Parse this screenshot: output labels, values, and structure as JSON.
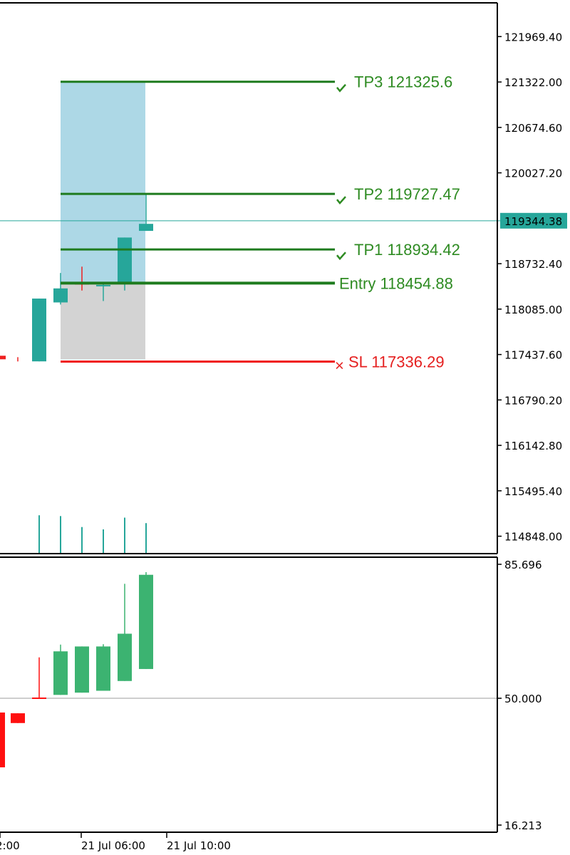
{
  "colors": {
    "up": "#26A69A",
    "down": "#EF2020",
    "tp": "#1E7B1E",
    "tp_text": "#2E8B22",
    "sl": "#F01818",
    "sl_text": "#E52020",
    "current_line": "#26A69A",
    "profit_zone": "#ADD8E6",
    "loss_zone": "#D3D3D3",
    "ind_up": "#3CB371",
    "ind_down": "#FF1010",
    "mid_line": "#BDBDBD"
  },
  "icons": {
    "tp_marker": "check-icon",
    "sl_marker": "x-icon"
  },
  "chart_data": [
    {
      "type": "candlestick",
      "title": "",
      "price_axis": {
        "ylim": [
          114600,
          122450
        ],
        "tick_labels": [
          "121969.40",
          "121322.00",
          "120674.60",
          "120027.20",
          "118732.40",
          "118085.00",
          "117437.60",
          "116790.20",
          "116142.80",
          "115495.40",
          "114848.00"
        ]
      },
      "current_price": {
        "value": 119344.38,
        "label": "119344.38"
      },
      "levels": [
        {
          "name": "TP3",
          "label": "TP3 121325.6",
          "value": 121325.6,
          "marker": "check"
        },
        {
          "name": "TP2",
          "label": "TP2 119727.47",
          "value": 119727.47,
          "marker": "check"
        },
        {
          "name": "TP1",
          "label": "TP1 118934.42",
          "value": 118934.42,
          "marker": "check"
        },
        {
          "name": "Entry",
          "label": "Entry 118454.88",
          "value": 118454.88,
          "marker": ""
        },
        {
          "name": "SL",
          "label": "SL 117336.29",
          "value": 117336.29,
          "marker": "x"
        }
      ],
      "candles": [
        {
          "t": 0,
          "open": 117339,
          "close": 117400,
          "high": 117400,
          "low": 117339,
          "dir": "down"
        },
        {
          "t": 1,
          "open": 117340,
          "close": 118235,
          "high": 118235,
          "low": 117340,
          "dir": "up"
        },
        {
          "t": 2,
          "open": 118180,
          "close": 118380,
          "high": 118600,
          "low": 118150,
          "dir": "up"
        },
        {
          "t": 3,
          "open": 118455,
          "close": 118455,
          "high": 118690,
          "low": 118350,
          "dir": "down"
        },
        {
          "t": 4,
          "open": 118420,
          "close": 118430,
          "high": 118470,
          "low": 118200,
          "dir": "up"
        },
        {
          "t": 5,
          "open": 118450,
          "close": 119105,
          "high": 119105,
          "low": 118350,
          "dir": "up"
        },
        {
          "t": 6,
          "open": 119200,
          "close": 119300,
          "high": 119720,
          "low": 119200,
          "dir": "up"
        }
      ],
      "volume": [
        0,
        0,
        0.48,
        0.47,
        0.33,
        0.3,
        0.45,
        0.38
      ]
    },
    {
      "type": "candlestick",
      "title": "",
      "ylim": [
        16.213,
        85.696
      ],
      "tick_labels": [
        "85.696",
        "50.000",
        "16.213"
      ],
      "mid_level": 50.0,
      "candles": [
        {
          "t": -1,
          "open": 46.2,
          "close": 31.6,
          "high": 46.2,
          "low": 31.6,
          "dir": "down"
        },
        {
          "t": 0,
          "open": 46.0,
          "close": 43.4,
          "high": 46.0,
          "low": 43.4,
          "dir": "down"
        },
        {
          "t": 1,
          "open": 50.2,
          "close": 50.2,
          "high": 60.9,
          "low": 50.2,
          "dir": "down"
        },
        {
          "t": 2,
          "open": 50.9,
          "close": 62.5,
          "high": 64.3,
          "low": 50.9,
          "dir": "up"
        },
        {
          "t": 3,
          "open": 51.5,
          "close": 63.8,
          "high": 63.8,
          "low": 51.5,
          "dir": "up"
        },
        {
          "t": 4,
          "open": 52.0,
          "close": 63.8,
          "high": 64.4,
          "low": 52.0,
          "dir": "up"
        },
        {
          "t": 5,
          "open": 54.6,
          "close": 67.2,
          "high": 80.5,
          "low": 54.6,
          "dir": "up"
        },
        {
          "t": 6,
          "open": 57.8,
          "close": 82.9,
          "high": 83.6,
          "low": 57.8,
          "dir": "up"
        }
      ]
    }
  ],
  "time_axis": {
    "labels": [
      {
        "text": "2:00",
        "t": 0
      },
      {
        "text": "21 Jul 06:00",
        "t": 2
      },
      {
        "text": "21 Jul 10:00",
        "t": 6
      }
    ]
  }
}
